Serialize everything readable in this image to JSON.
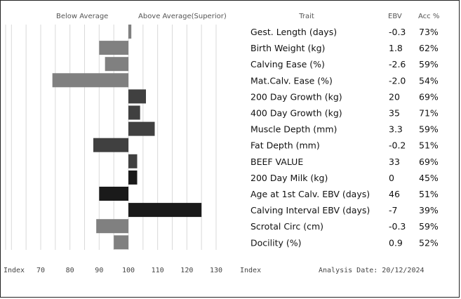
{
  "header": {
    "below_label": "Below Average",
    "above_label": "Above Average(Superior)",
    "trait_header": "Trait",
    "ebv_header": "EBV",
    "acc_header": "Acc %"
  },
  "footer": {
    "index_left": "Index",
    "index_right": "Index",
    "analysis_date": "Analysis Date: 20/12/2024"
  },
  "colors": {
    "bar_light": "#808080",
    "bar_dark": "#404040",
    "bar_black": "#1a1a1a",
    "grid": "#d9d9d9",
    "text": "#111111",
    "header_text": "#555555"
  },
  "chart_data": {
    "type": "bar",
    "orientation": "horizontal",
    "baseline": 100,
    "xlim": [
      70,
      130
    ],
    "ticks": [
      70,
      80,
      90,
      100,
      110,
      120,
      130
    ],
    "grid": true,
    "rows": [
      {
        "trait": "Gest. Length (days)",
        "ebv": "-0.3",
        "acc": "73%",
        "index": 101,
        "shade": "bar_light"
      },
      {
        "trait": "Birth Weight (kg)",
        "ebv": "1.8",
        "acc": "62%",
        "index": 90,
        "shade": "bar_light"
      },
      {
        "trait": "Calving Ease (%)",
        "ebv": "-2.6",
        "acc": "59%",
        "index": 92,
        "shade": "bar_light"
      },
      {
        "trait": "Mat.Calv. Ease (%)",
        "ebv": "-2.0",
        "acc": "54%",
        "index": 74,
        "shade": "bar_light"
      },
      {
        "trait": "200 Day Growth (kg)",
        "ebv": "20",
        "acc": "69%",
        "index": 106,
        "shade": "bar_dark"
      },
      {
        "trait": "400 Day Growth (kg)",
        "ebv": "35",
        "acc": "71%",
        "index": 104,
        "shade": "bar_dark"
      },
      {
        "trait": "Muscle Depth (mm)",
        "ebv": "3.3",
        "acc": "59%",
        "index": 109,
        "shade": "bar_dark"
      },
      {
        "trait": "Fat Depth (mm)",
        "ebv": "-0.2",
        "acc": "51%",
        "index": 88,
        "shade": "bar_dark"
      },
      {
        "trait": "BEEF VALUE",
        "ebv": "33",
        "acc": "69%",
        "index": 103,
        "shade": "bar_dark"
      },
      {
        "trait": "200 Day Milk (kg)",
        "ebv": "0",
        "acc": "45%",
        "index": 103,
        "shade": "bar_black"
      },
      {
        "trait": "Age at 1st Calv. EBV (days)",
        "ebv": "46",
        "acc": "51%",
        "index": 90,
        "shade": "bar_black"
      },
      {
        "trait": "Calving Interval EBV (days)",
        "ebv": "-7",
        "acc": "39%",
        "index": 125,
        "shade": "bar_black"
      },
      {
        "trait": "Scrotal Circ (cm)",
        "ebv": "-0.3",
        "acc": "59%",
        "index": 89,
        "shade": "bar_light"
      },
      {
        "trait": "Docility (%)",
        "ebv": "0.9",
        "acc": "52%",
        "index": 95,
        "shade": "bar_light"
      }
    ]
  }
}
